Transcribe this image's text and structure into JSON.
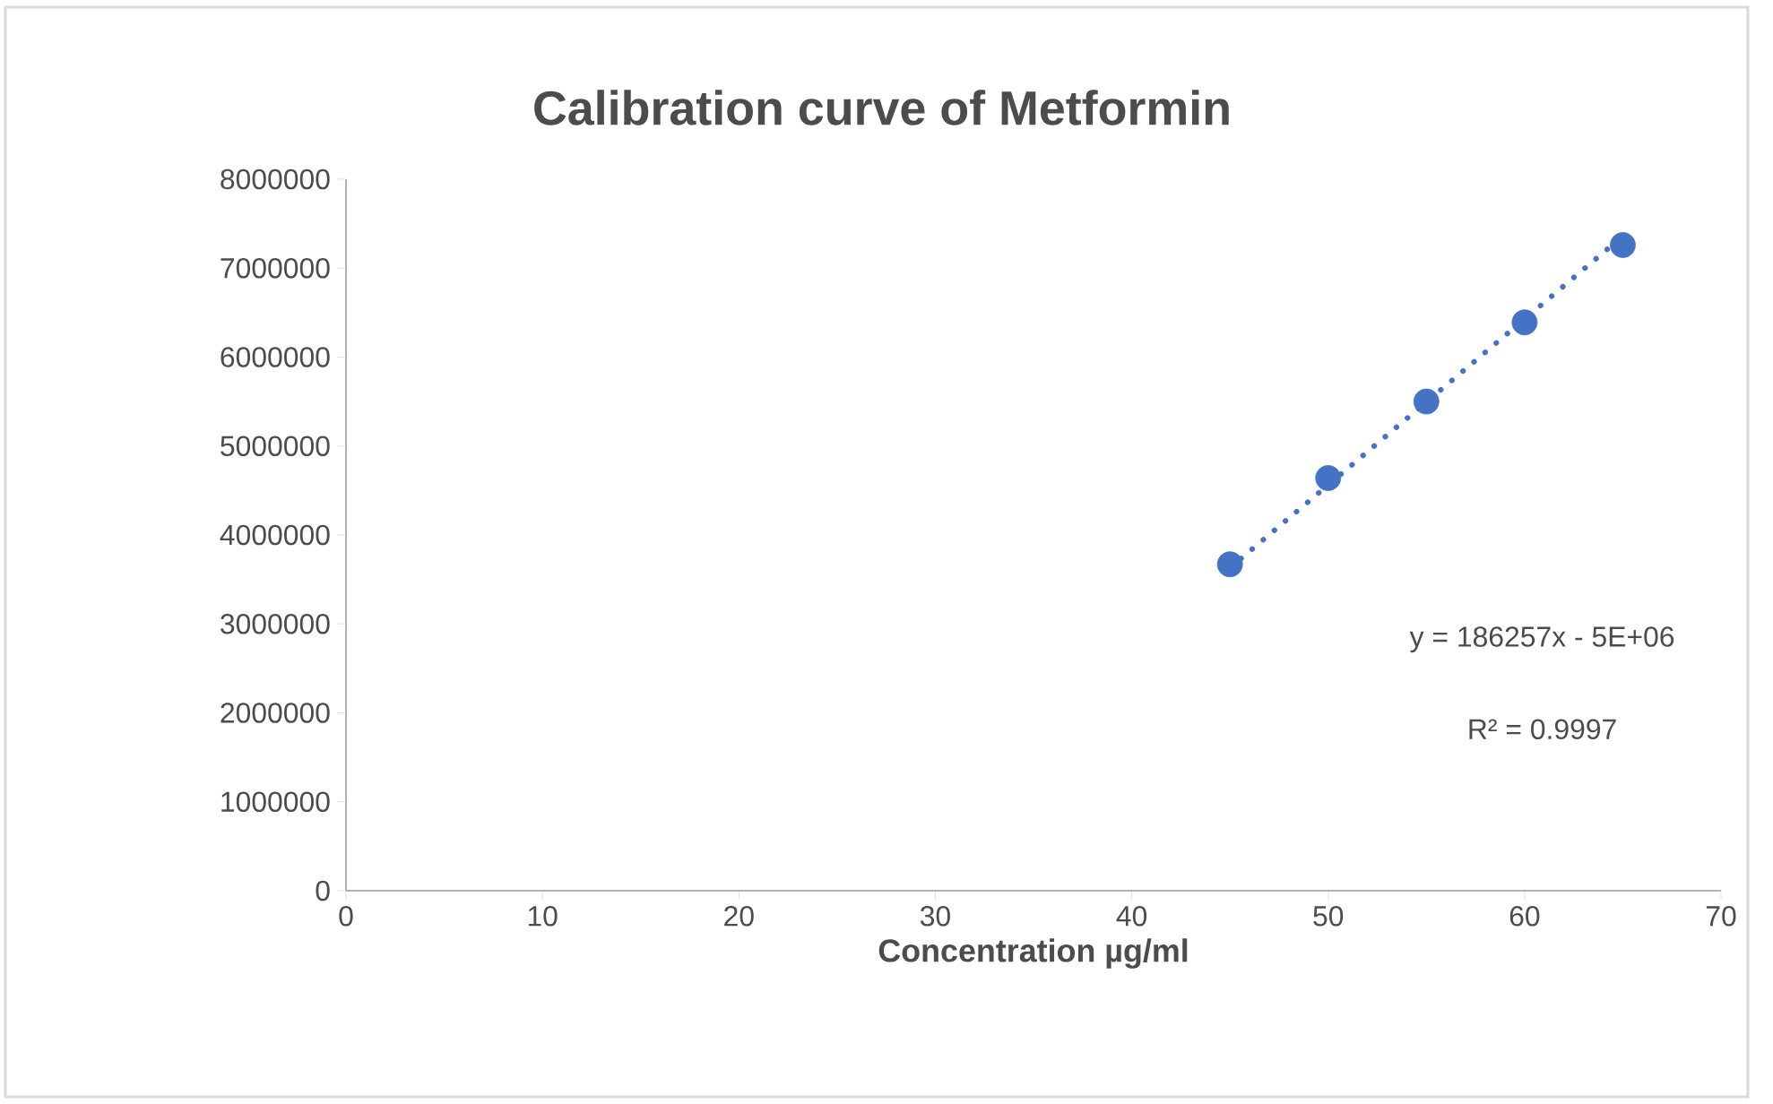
{
  "chart_data": {
    "type": "scatter",
    "title": "Calibration curve of Metformin",
    "xlabel": "Concentration µg/ml",
    "xlim": [
      0,
      70
    ],
    "xticks": [
      0,
      10,
      20,
      30,
      40,
      50,
      60,
      70
    ],
    "ylim": [
      0,
      8000000
    ],
    "yticks": [
      0,
      1000000,
      2000000,
      3000000,
      4000000,
      5000000,
      6000000,
      7000000,
      8000000
    ],
    "grid": false,
    "marker": "circle",
    "series": [
      {
        "color": "#4472c4",
        "x": [
          45,
          50,
          55,
          60,
          65
        ],
        "values": [
          3670000,
          4640000,
          5500000,
          6390000,
          7260000
        ]
      },
      {
        "type": "line",
        "color": "#4472c4",
        "marker": "none",
        "line_style": "dotted",
        "x": [
          45,
          65
        ],
        "values": [
          3630000,
          7360000
        ]
      }
    ],
    "annotations": [
      "y = 186257x - 5E+06",
      "R² = 0.9997"
    ]
  }
}
